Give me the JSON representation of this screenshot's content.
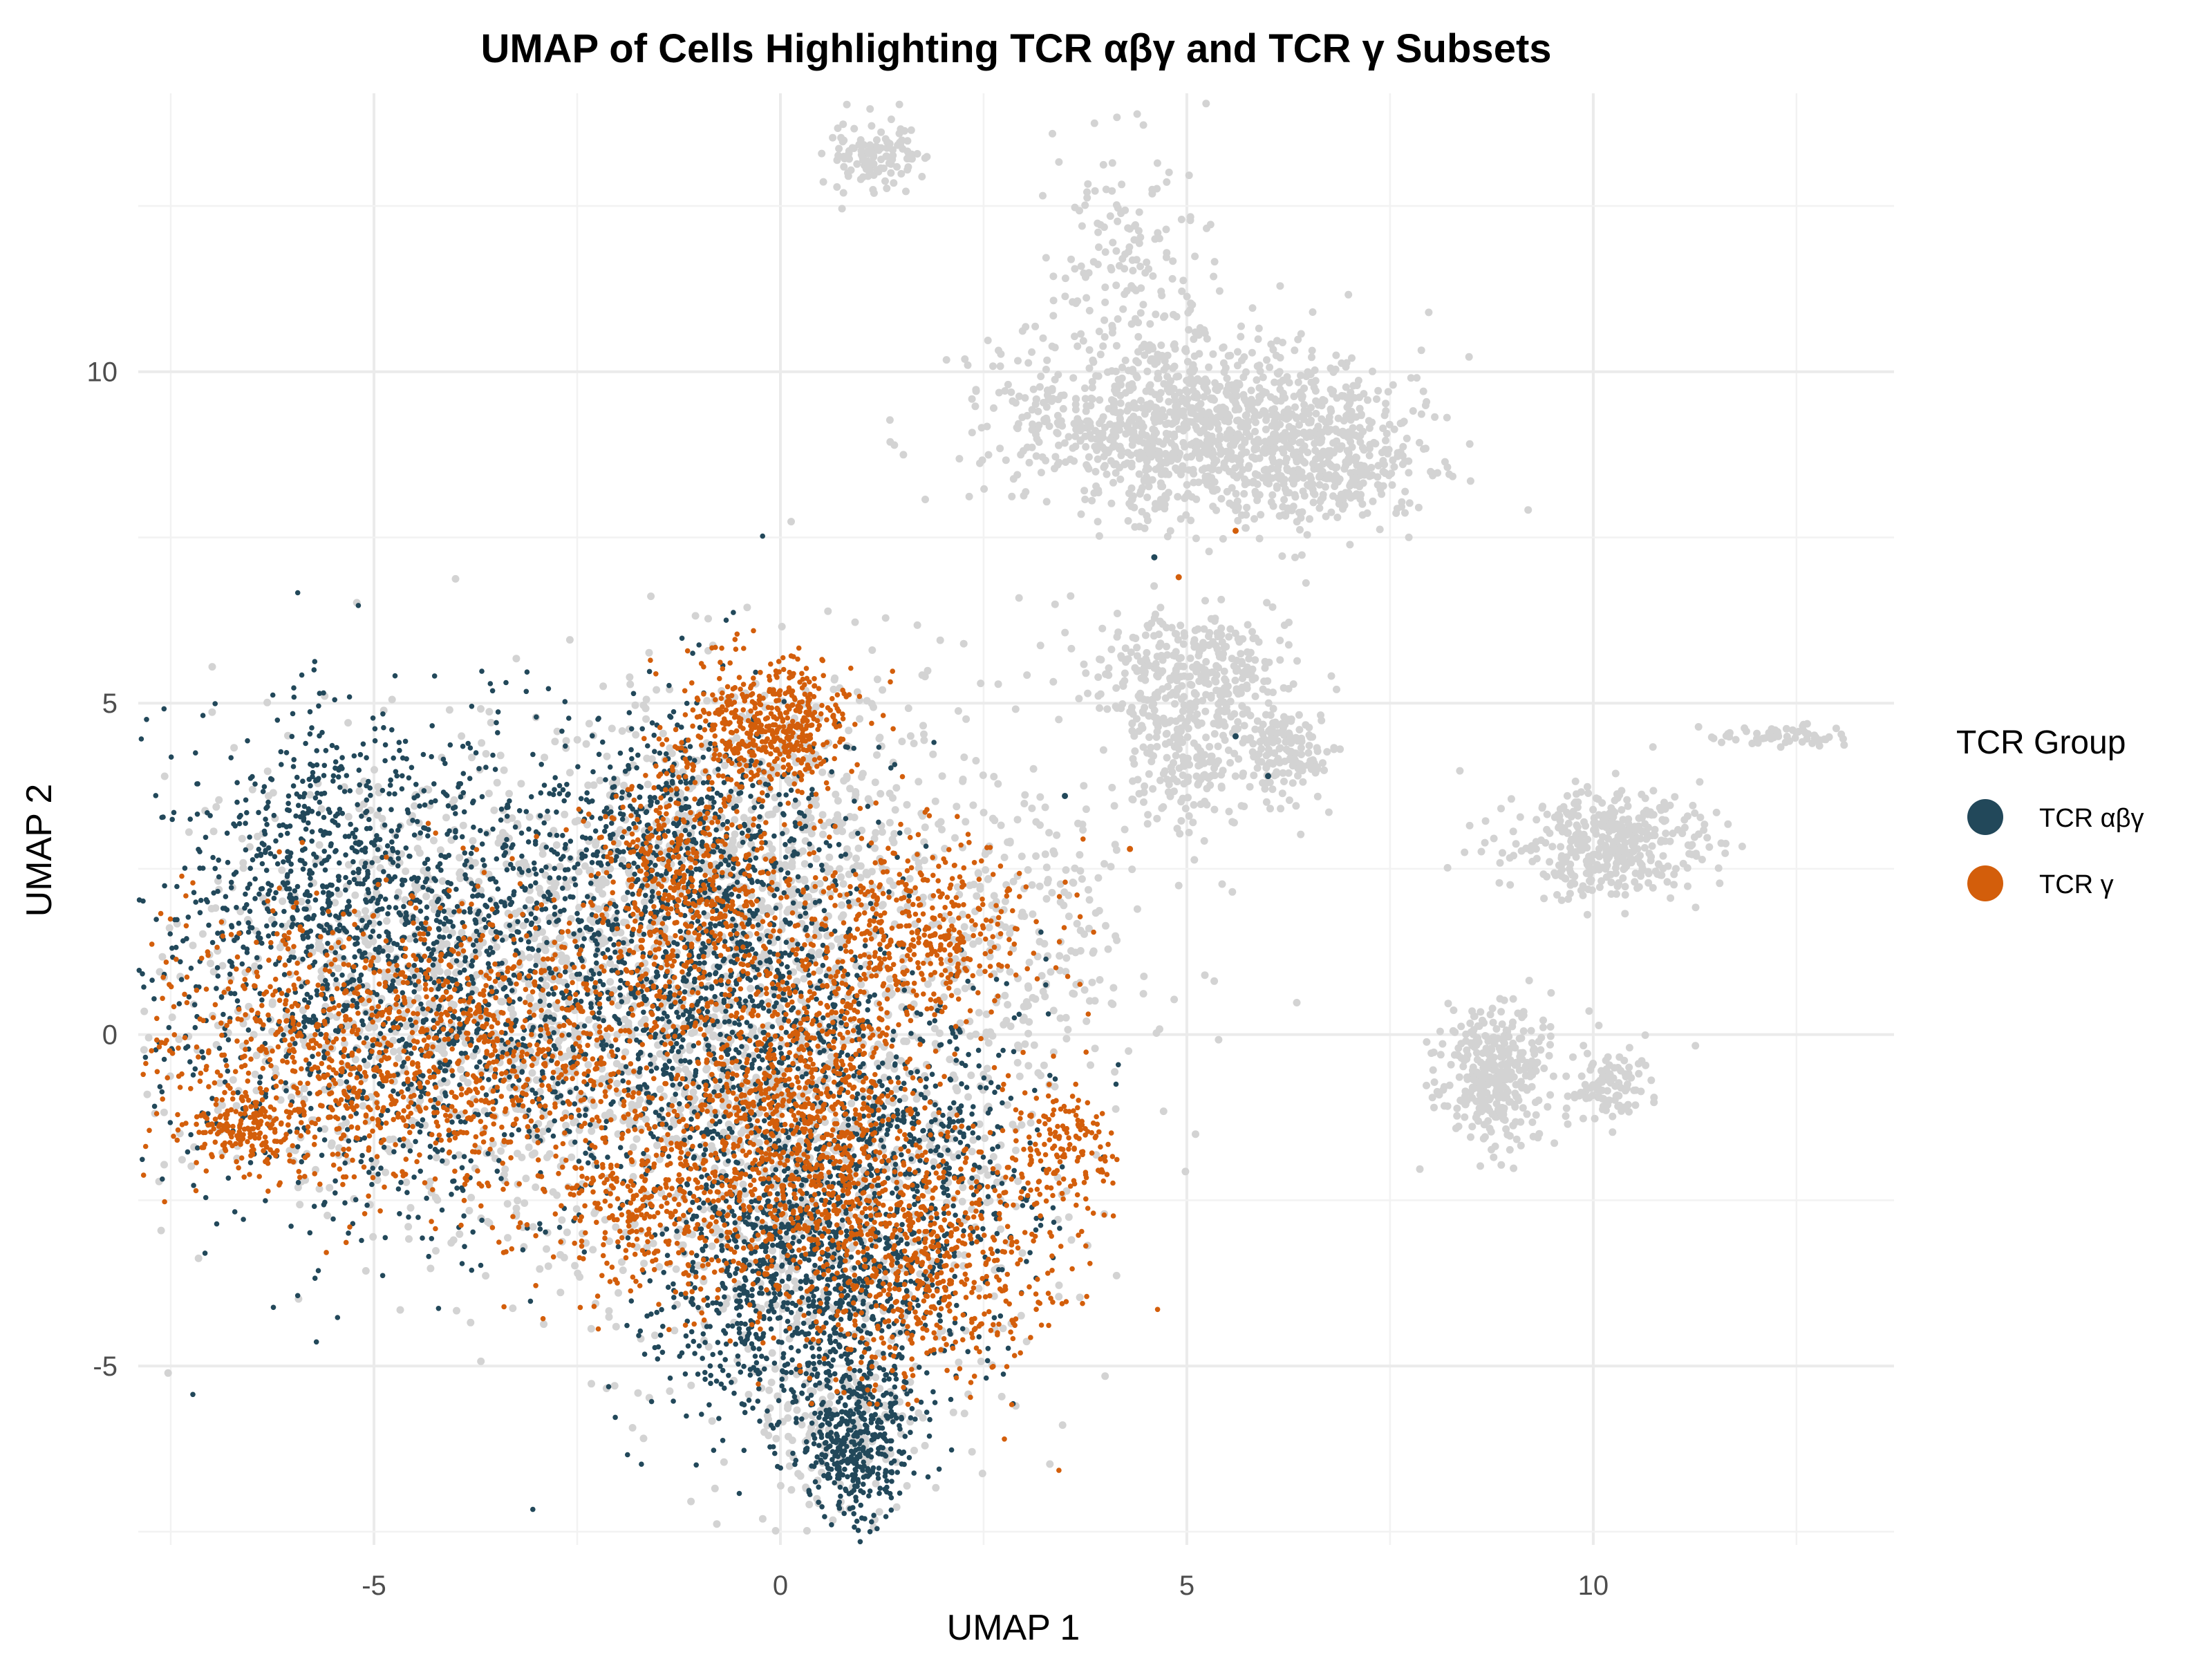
{
  "chart_data": {
    "type": "scatter",
    "title": "UMAP of Cells Highlighting TCR αβγ and TCR γ Subsets",
    "xlabel": "UMAP 1",
    "ylabel": "UMAP 2",
    "xlim": [
      -7.9,
      13.7
    ],
    "ylim": [
      -7.7,
      14.2
    ],
    "x_ticks": [
      -5,
      0,
      5,
      10
    ],
    "y_ticks": [
      -5,
      0,
      5,
      10
    ],
    "grid": true,
    "legend": {
      "title": "TCR Group",
      "position": "right",
      "entries": [
        "TCR αβγ",
        "TCR γ"
      ]
    },
    "colors": {
      "background_cells": "#d3d3d3",
      "TCR αβγ": "#22485a",
      "TCR γ": "#d35e0b"
    },
    "background_clusters": [
      {
        "cx": -3.2,
        "cy": 0.6,
        "sx": 2.2,
        "sy": 1.9,
        "n": 1500
      },
      {
        "cx": 0.4,
        "cy": -2.0,
        "sx": 1.5,
        "sy": 1.9,
        "n": 800
      },
      {
        "cx": -0.2,
        "cy": 3.2,
        "sx": 1.1,
        "sy": 1.2,
        "n": 500
      },
      {
        "cx": 2.8,
        "cy": 1.5,
        "sx": 0.9,
        "sy": 1.6,
        "n": 300
      },
      {
        "cx": 5.1,
        "cy": 9.2,
        "sx": 1.2,
        "sy": 0.7,
        "n": 1100
      },
      {
        "cx": 6.7,
        "cy": 8.6,
        "sx": 0.6,
        "sy": 0.5,
        "n": 300
      },
      {
        "cx": 4.3,
        "cy": 11.7,
        "sx": 0.5,
        "sy": 1.0,
        "n": 150
      },
      {
        "cx": 5.0,
        "cy": 5.4,
        "sx": 0.6,
        "sy": 0.5,
        "n": 350
      },
      {
        "cx": 5.0,
        "cy": 4.0,
        "sx": 0.4,
        "sy": 0.5,
        "n": 150
      },
      {
        "cx": 6.2,
        "cy": 4.3,
        "sx": 0.3,
        "sy": 0.4,
        "n": 150
      },
      {
        "cx": 10.2,
        "cy": 2.9,
        "sx": 0.6,
        "sy": 0.4,
        "n": 400
      },
      {
        "cx": 8.8,
        "cy": -0.6,
        "sx": 0.35,
        "sy": 0.55,
        "n": 350
      },
      {
        "cx": 10.1,
        "cy": -0.8,
        "sx": 0.3,
        "sy": 0.3,
        "n": 100
      },
      {
        "cx": 12.2,
        "cy": 4.5,
        "sx": 0.5,
        "sy": 0.08,
        "n": 60
      },
      {
        "cx": 1.1,
        "cy": 13.3,
        "sx": 0.3,
        "sy": 0.25,
        "n": 120
      },
      {
        "cx": 0.7,
        "cy": -5.9,
        "sx": 0.5,
        "sy": 0.8,
        "n": 150
      }
    ],
    "tcr_abg_clusters": [
      {
        "cx": -4.2,
        "cy": 0.9,
        "sx": 1.9,
        "sy": 1.8,
        "n": 1800
      },
      {
        "cx": -5.6,
        "cy": 2.5,
        "sx": 0.8,
        "sy": 1.0,
        "n": 350
      },
      {
        "cx": 0.3,
        "cy": -3.6,
        "sx": 0.9,
        "sy": 1.2,
        "n": 1100
      },
      {
        "cx": 0.9,
        "cy": -6.1,
        "sx": 0.35,
        "sy": 0.6,
        "n": 400
      },
      {
        "cx": -0.6,
        "cy": 0.8,
        "sx": 0.9,
        "sy": 1.8,
        "n": 900
      },
      {
        "cx": -1.2,
        "cy": 3.1,
        "sx": 0.7,
        "sy": 0.8,
        "n": 300
      },
      {
        "cx": 1.7,
        "cy": -1.8,
        "sx": 0.8,
        "sy": 1.2,
        "n": 500
      }
    ],
    "tcr_g_clusters": [
      {
        "cx": -4.4,
        "cy": -0.2,
        "sx": 1.9,
        "sy": 1.1,
        "n": 1400
      },
      {
        "cx": -0.1,
        "cy": 4.7,
        "sx": 0.5,
        "sy": 0.5,
        "n": 500
      },
      {
        "cx": 0.2,
        "cy": -1.0,
        "sx": 0.7,
        "sy": 1.0,
        "n": 700
      },
      {
        "cx": 1.6,
        "cy": -3.3,
        "sx": 0.9,
        "sy": 1.0,
        "n": 800
      },
      {
        "cx": 1.6,
        "cy": 1.5,
        "sx": 0.8,
        "sy": 0.8,
        "n": 500
      },
      {
        "cx": -1.2,
        "cy": 2.3,
        "sx": 0.6,
        "sy": 1.0,
        "n": 500
      },
      {
        "cx": -1.4,
        "cy": -2.5,
        "sx": 0.8,
        "sy": 0.8,
        "n": 400
      },
      {
        "cx": 3.5,
        "cy": -1.6,
        "sx": 0.3,
        "sy": 0.5,
        "n": 150
      },
      {
        "cx": -6.6,
        "cy": -1.4,
        "sx": 0.35,
        "sy": 0.3,
        "n": 150
      }
    ],
    "tcr_g_outliers": [
      [
        5.6,
        7.6
      ],
      [
        4.9,
        6.9
      ],
      [
        4.3,
        2.8
      ]
    ],
    "tcr_abg_outliers": [
      [
        5.6,
        4.5
      ],
      [
        6.0,
        3.9
      ],
      [
        4.6,
        7.2
      ],
      [
        3.5,
        3.6
      ]
    ]
  }
}
